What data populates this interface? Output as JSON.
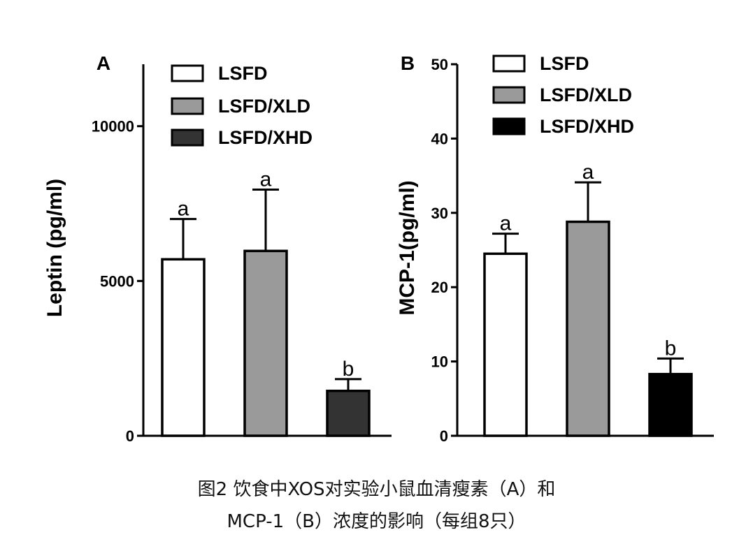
{
  "chart_data": [
    {
      "type": "bar",
      "panel_label": "A",
      "ylabel": "Leptin (pg/ml)",
      "ylim": [
        0,
        12000
      ],
      "yticks": [
        0,
        5000,
        10000
      ],
      "categories": [
        "LSFD",
        "LSFD/XLD",
        "LSFD/XHD"
      ],
      "values": [
        5700,
        5970,
        1450
      ],
      "errors": [
        1300,
        1980,
        380
      ],
      "significance": [
        "a",
        "a",
        "b"
      ],
      "bar_colors": [
        "#ffffff",
        "#9a9a9a",
        "#333333"
      ],
      "legend": [
        "LSFD",
        "LSFD/XLD",
        "LSFD/XHD"
      ],
      "legend_position": "top"
    },
    {
      "type": "bar",
      "panel_label": "B",
      "ylabel": "MCP-1(pg/ml)",
      "ylim": [
        0,
        50
      ],
      "yticks": [
        0,
        10,
        20,
        30,
        40,
        50
      ],
      "categories": [
        "LSFD",
        "LSFD/XLD",
        "LSFD/XHD"
      ],
      "values": [
        24.5,
        28.8,
        8.3
      ],
      "errors": [
        2.7,
        5.3,
        2.1
      ],
      "significance": [
        "a",
        "a",
        "b"
      ],
      "bar_colors": [
        "#ffffff",
        "#9a9a9a",
        "#000000"
      ],
      "legend": [
        "LSFD",
        "LSFD/XLD",
        "LSFD/XHD"
      ],
      "legend_position": "top"
    }
  ],
  "caption": {
    "line1": "图2 饮食中XOS对实验小鼠血清瘦素（A）和",
    "line2": "MCP-1（B）浓度的影响（每组8只）"
  }
}
